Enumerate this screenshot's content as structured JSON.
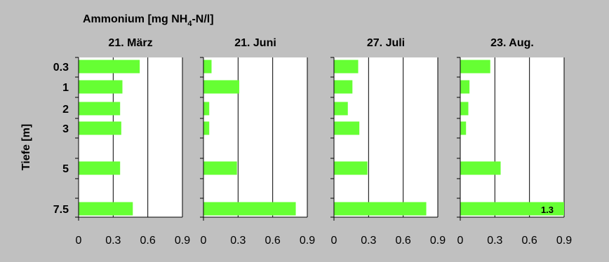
{
  "chart_data": {
    "type": "bar",
    "orientation": "horizontal",
    "title_prefix": "Ammonium [mg NH",
    "title_sub": "4",
    "title_suffix": "-N/l]",
    "ylabel": "Tiefe [m]",
    "xlim": [
      0,
      0.9
    ],
    "x_ticks": [
      "0",
      "0.3",
      "0.6",
      "0.9"
    ],
    "y_ticks": [
      "0.3",
      "1",
      "2",
      "3",
      "5",
      "7.5"
    ],
    "bar_color": "#66ff33",
    "grid": true,
    "panels": [
      {
        "title": "21. März",
        "depths": [
          "0.3",
          "1",
          "2",
          "3",
          "5",
          "7.5"
        ],
        "values": [
          0.53,
          0.38,
          0.36,
          0.37,
          0.36,
          0.47
        ]
      },
      {
        "title": "21. Juni",
        "depths": [
          "0.3",
          "1",
          "2",
          "3",
          "5",
          "7.5"
        ],
        "values": [
          0.07,
          0.31,
          0.05,
          0.05,
          0.29,
          0.8
        ]
      },
      {
        "title": "27. Juli",
        "depths": [
          "0.3",
          "1",
          "2",
          "3",
          "5",
          "7.5"
        ],
        "values": [
          0.21,
          0.16,
          0.12,
          0.22,
          0.29,
          0.8
        ]
      },
      {
        "title": "23. Aug.",
        "depths": [
          "0.3",
          "1",
          "2",
          "3",
          "5",
          "7.5"
        ],
        "values": [
          0.26,
          0.08,
          0.07,
          0.05,
          0.35,
          1.3
        ],
        "value_labels": [
          "",
          "",
          "",
          "",
          "",
          "1.3"
        ]
      }
    ]
  }
}
